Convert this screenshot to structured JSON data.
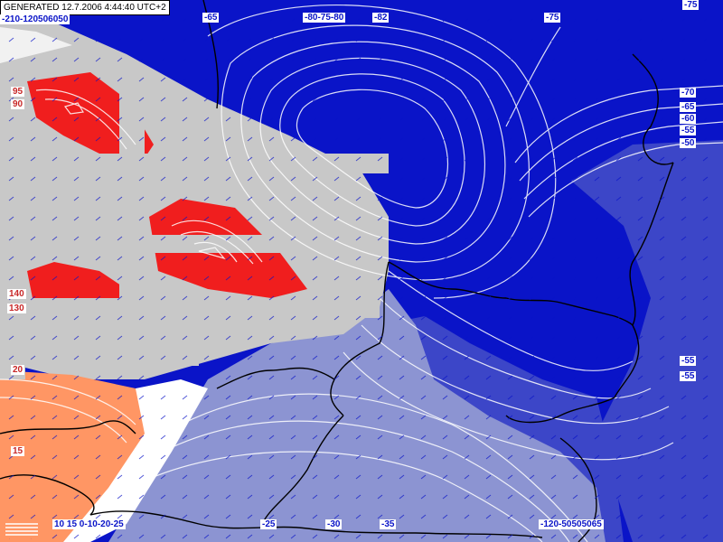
{
  "header": {
    "generated": "GENERATED 12.7.2006 4:44:40 UTC+2"
  },
  "colors": {
    "deep_blue": "#0a14c8",
    "mid_blue": "#3c46c8",
    "light_blue": "#8c94d2",
    "grey": "#c8c8c8",
    "red": "#f01e1e",
    "orange": "#ff9664",
    "contour": "#ffffff",
    "border": "#000000"
  },
  "contour_labels": [
    {
      "id": "top-left",
      "text": "-210-120506050"
    },
    {
      "id": "top-mid-1",
      "text": "-65"
    },
    {
      "id": "top-mid-2",
      "text": "-80-75-80"
    },
    {
      "id": "top-mid-3",
      "text": "-82"
    },
    {
      "id": "top-right-1",
      "text": "-75"
    },
    {
      "id": "top-right-corner",
      "text": "-75"
    },
    {
      "id": "right-70",
      "text": "-70"
    },
    {
      "id": "right-65",
      "text": "-65"
    },
    {
      "id": "right-60",
      "text": "-60"
    },
    {
      "id": "right-55",
      "text": "-55"
    },
    {
      "id": "right-50",
      "text": "-50"
    },
    {
      "id": "right-lower-1",
      "text": "-55"
    },
    {
      "id": "right-lower-2",
      "text": "-55"
    },
    {
      "id": "left-95",
      "text": "95"
    },
    {
      "id": "left-90",
      "text": "90"
    },
    {
      "id": "left-140",
      "text": "140"
    },
    {
      "id": "left-130",
      "text": "130"
    },
    {
      "id": "left-20",
      "text": "20"
    },
    {
      "id": "left-15",
      "text": "15"
    },
    {
      "id": "bottom-left",
      "text": "10 15 0-10-20-25"
    },
    {
      "id": "bottom-25",
      "text": "-25"
    },
    {
      "id": "bottom-30",
      "text": "-30"
    },
    {
      "id": "bottom-35",
      "text": "-35"
    },
    {
      "id": "bottom-right",
      "text": "-120-50505065"
    }
  ]
}
